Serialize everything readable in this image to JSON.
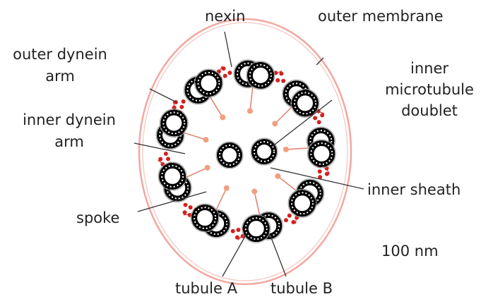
{
  "labels": {
    "nexin": "nexin",
    "outer_membrane": "outer membrane",
    "outer_dynein_arm": [
      "outer dynein",
      "arm"
    ],
    "inner_microtubule_doublet": [
      "inner",
      "microtubule",
      "doublet"
    ],
    "inner_dynein_arm": [
      "inner dynein",
      "arm"
    ],
    "inner_sheath": "inner sheath",
    "spoke": "spoke",
    "scale": "100 nm",
    "tubule_a": "tubule A",
    "tubule_b": "tubule B"
  }
}
